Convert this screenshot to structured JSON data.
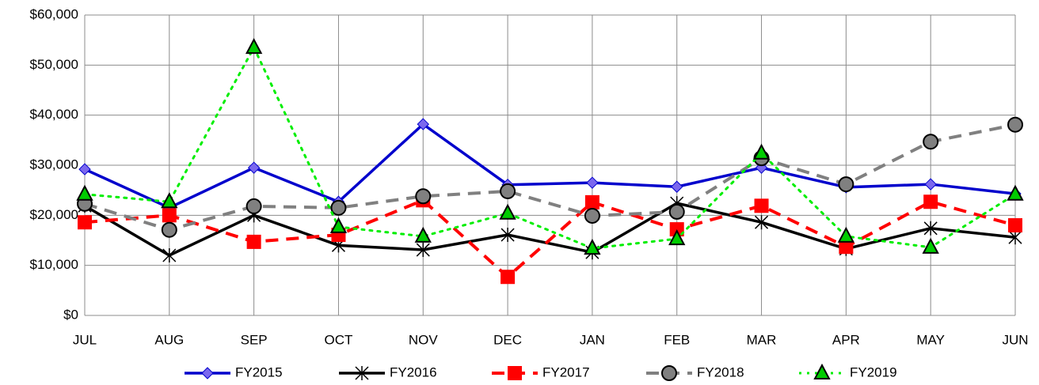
{
  "chart_data": {
    "type": "line",
    "categories": [
      "JUL",
      "AUG",
      "SEP",
      "OCT",
      "NOV",
      "DEC",
      "JAN",
      "FEB",
      "MAR",
      "APR",
      "MAY",
      "JUN"
    ],
    "series": [
      {
        "name": "FY2015",
        "color": "#0000cc",
        "marker": "diamond",
        "marker_color": "#7b68ee",
        "dash": "solid",
        "values": [
          29200,
          21500,
          29500,
          22700,
          38200,
          26100,
          26500,
          25700,
          29500,
          25600,
          26200,
          24300
        ]
      },
      {
        "name": "FY2016",
        "color": "#000000",
        "marker": "x",
        "marker_color": "#000000",
        "dash": "solid",
        "values": [
          21900,
          12000,
          20000,
          14000,
          13100,
          16100,
          12600,
          22400,
          18600,
          13300,
          17400,
          15600
        ]
      },
      {
        "name": "FY2017",
        "color": "#ff0000",
        "marker": "square",
        "marker_color": "#ff0000",
        "dash": "dashed",
        "values": [
          18600,
          20000,
          14700,
          16100,
          23000,
          7700,
          22600,
          17200,
          21900,
          13700,
          22700,
          18000
        ]
      },
      {
        "name": "FY2018",
        "color": "#808080",
        "marker": "circle",
        "marker_color": "#808080",
        "dash": "dashed",
        "values": [
          22300,
          17100,
          21800,
          21500,
          23800,
          24800,
          19900,
          20700,
          31400,
          26200,
          34700,
          38100
        ]
      },
      {
        "name": "FY2019",
        "color": "#00ee00",
        "marker": "triangle",
        "marker_color": "#00cc00",
        "dash": "dotted",
        "values": [
          24200,
          22700,
          53500,
          17700,
          15800,
          20400,
          13400,
          15300,
          32400,
          15800,
          13600,
          24200
        ]
      }
    ],
    "ylim": [
      0,
      60000
    ],
    "yticks": [
      {
        "value": 0,
        "label": "$0"
      },
      {
        "value": 10000,
        "label": "$10,000"
      },
      {
        "value": 20000,
        "label": "$20,000"
      },
      {
        "value": 30000,
        "label": "$30,000"
      },
      {
        "value": 40000,
        "label": "$40,000"
      },
      {
        "value": 50000,
        "label": "$50,000"
      },
      {
        "value": 60000,
        "label": "$60,000"
      }
    ],
    "grid": true,
    "legend": "bottom"
  }
}
